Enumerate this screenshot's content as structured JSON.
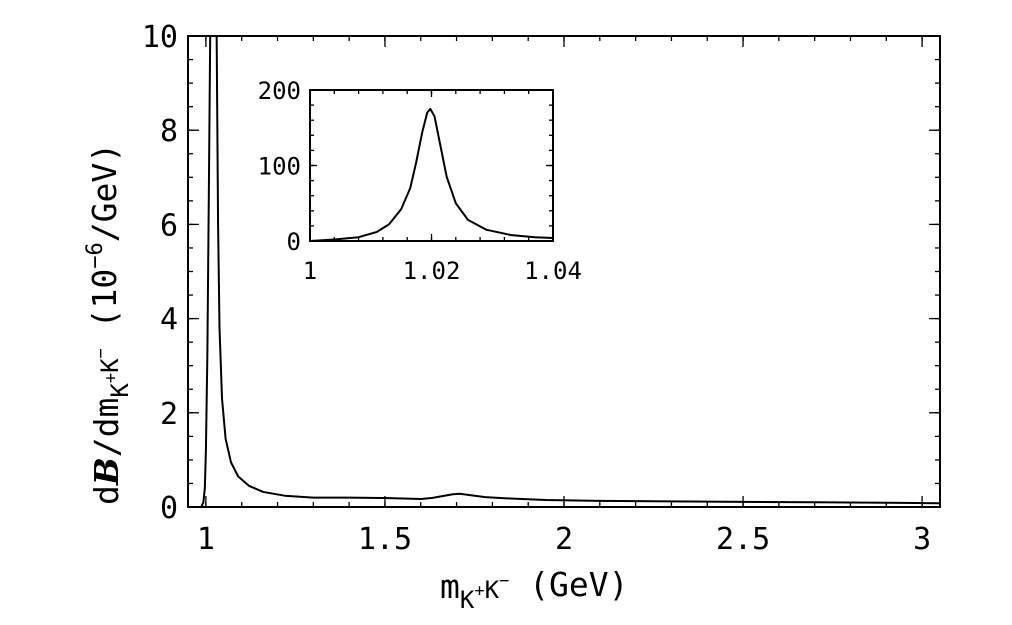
{
  "chart_data": [
    {
      "type": "line",
      "title": "",
      "xlabel": "m_{K+K-} (GeV)",
      "ylabel": "dB/dm_{K+K-} (10^-6/GeV)",
      "xlim": [
        0.95,
        3.05
      ],
      "ylim": [
        0,
        10
      ],
      "xticks": [
        "1",
        "1.5",
        "2",
        "2.5",
        "3"
      ],
      "xtick_values": [
        1,
        1.5,
        2,
        2.5,
        3
      ],
      "yticks": [
        "0",
        "2",
        "4",
        "6",
        "8",
        "10"
      ],
      "ytick_values": [
        0,
        2,
        4,
        6,
        8,
        10
      ],
      "grid": false,
      "series": [
        {
          "x": [
            0.987,
            0.993,
            0.997,
            1.0,
            1.004,
            1.008,
            1.012,
            1.03,
            1.034,
            1.038,
            1.045,
            1.055,
            1.07,
            1.09,
            1.12,
            1.16,
            1.22,
            1.3,
            1.4,
            1.5,
            1.55,
            1.6,
            1.63,
            1.66,
            1.69,
            1.71,
            1.74,
            1.78,
            1.85,
            1.95,
            2.1,
            2.3,
            2.5,
            2.7,
            2.9,
            3.05
          ],
          "y": [
            0.0,
            0.1,
            0.4,
            1.2,
            3.2,
            6.5,
            10.0,
            10.0,
            6.0,
            3.8,
            2.3,
            1.45,
            0.95,
            0.65,
            0.45,
            0.32,
            0.24,
            0.2,
            0.2,
            0.19,
            0.18,
            0.17,
            0.19,
            0.23,
            0.27,
            0.28,
            0.25,
            0.21,
            0.18,
            0.15,
            0.13,
            0.12,
            0.11,
            0.1,
            0.09,
            0.08
          ]
        }
      ]
    },
    {
      "type": "line",
      "title": "",
      "xlim": [
        1.0,
        1.04
      ],
      "ylim": [
        0,
        200
      ],
      "xticks": [
        "1",
        "1.02",
        "1.04"
      ],
      "xtick_values": [
        1.0,
        1.02,
        1.04
      ],
      "yticks": [
        "0",
        "100",
        "200"
      ],
      "ytick_values": [
        0,
        100,
        200
      ],
      "grid": false,
      "series": [
        {
          "x": [
            1.0,
            1.004,
            1.008,
            1.011,
            1.013,
            1.015,
            1.0165,
            1.0175,
            1.0185,
            1.0193,
            1.0198,
            1.0205,
            1.0215,
            1.0225,
            1.024,
            1.026,
            1.029,
            1.033,
            1.037,
            1.04
          ],
          "y": [
            0,
            2,
            5,
            12,
            22,
            42,
            70,
            105,
            145,
            170,
            175,
            165,
            125,
            85,
            50,
            28,
            15,
            8,
            5,
            4
          ]
        }
      ]
    }
  ]
}
